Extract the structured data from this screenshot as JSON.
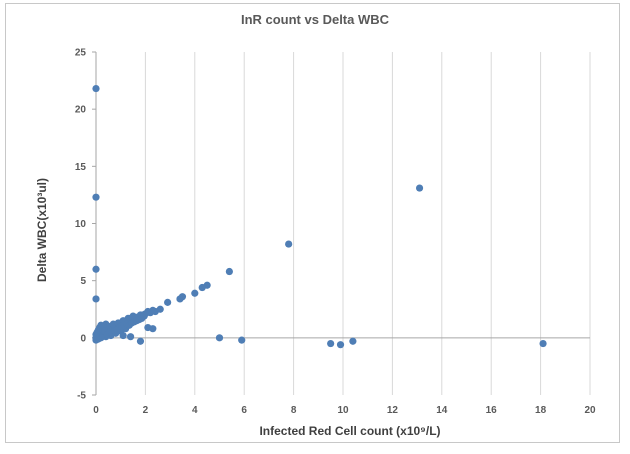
{
  "chart_data": {
    "type": "scatter",
    "title": "InR count vs Delta WBC",
    "xlabel": "Infected Red Cell count (x10⁹/L)",
    "ylabel": "Delta WBC(x10³ul)",
    "xlim": [
      0,
      20
    ],
    "ylim": [
      -5,
      25
    ],
    "xticks": [
      0,
      2,
      4,
      6,
      8,
      10,
      12,
      14,
      16,
      18,
      20
    ],
    "yticks": [
      -5,
      0,
      5,
      10,
      15,
      20,
      25
    ],
    "grid": "vertical",
    "color": "#4f7eb5",
    "points": [
      [
        0.0,
        21.8
      ],
      [
        0.0,
        12.3
      ],
      [
        0.0,
        6.0
      ],
      [
        0.0,
        3.4
      ],
      [
        13.1,
        13.1
      ],
      [
        7.8,
        8.2
      ],
      [
        5.4,
        5.8
      ],
      [
        4.5,
        4.6
      ],
      [
        4.3,
        4.4
      ],
      [
        4.0,
        3.9
      ],
      [
        3.5,
        3.6
      ],
      [
        3.4,
        3.4
      ],
      [
        2.9,
        3.1
      ],
      [
        2.6,
        2.5
      ],
      [
        2.4,
        2.3
      ],
      [
        2.2,
        2.2
      ],
      [
        2.0,
        2.1
      ],
      [
        1.8,
        2.0
      ],
      [
        1.6,
        1.8
      ],
      [
        1.5,
        1.6
      ],
      [
        1.4,
        1.5
      ],
      [
        1.3,
        1.4
      ],
      [
        1.2,
        1.3
      ],
      [
        1.1,
        1.2
      ],
      [
        1.0,
        1.1
      ],
      [
        0.9,
        1.0
      ],
      [
        0.8,
        0.9
      ],
      [
        0.7,
        0.8
      ],
      [
        0.6,
        0.7
      ],
      [
        0.5,
        0.6
      ],
      [
        0.4,
        0.5
      ],
      [
        0.3,
        0.4
      ],
      [
        0.2,
        0.3
      ],
      [
        0.1,
        0.2
      ],
      [
        0.2,
        1.1
      ],
      [
        0.4,
        1.2
      ],
      [
        0.6,
        1.0
      ],
      [
        0.3,
        0.8
      ],
      [
        0.5,
        0.9
      ],
      [
        0.7,
        1.2
      ],
      [
        0.9,
        1.3
      ],
      [
        1.1,
        1.5
      ],
      [
        1.3,
        1.7
      ],
      [
        1.5,
        1.9
      ],
      [
        1.7,
        1.8
      ],
      [
        1.9,
        2.0
      ],
      [
        2.1,
        2.3
      ],
      [
        2.3,
        2.4
      ],
      [
        1.0,
        0.6
      ],
      [
        1.2,
        0.8
      ],
      [
        0.8,
        0.4
      ],
      [
        0.6,
        0.2
      ],
      [
        0.4,
        0.1
      ],
      [
        0.2,
        0.0
      ],
      [
        0.1,
        -0.1
      ],
      [
        0.0,
        -0.2
      ],
      [
        0.0,
        0.0
      ],
      [
        0.0,
        0.3
      ],
      [
        0.05,
        0.5
      ],
      [
        0.1,
        0.7
      ],
      [
        0.15,
        0.9
      ],
      [
        0.3,
        1.0
      ],
      [
        0.35,
        0.6
      ],
      [
        0.45,
        0.3
      ],
      [
        0.55,
        0.5
      ],
      [
        0.65,
        0.4
      ],
      [
        0.75,
        0.6
      ],
      [
        0.85,
        0.7
      ],
      [
        0.95,
        0.9
      ],
      [
        1.05,
        1.0
      ],
      [
        1.15,
        1.1
      ],
      [
        1.25,
        1.2
      ],
      [
        1.35,
        1.1
      ],
      [
        1.45,
        1.3
      ],
      [
        1.55,
        1.4
      ],
      [
        1.65,
        1.5
      ],
      [
        1.75,
        1.6
      ],
      [
        1.85,
        1.7
      ],
      [
        1.95,
        1.9
      ],
      [
        2.1,
        0.9
      ],
      [
        2.3,
        0.8
      ],
      [
        1.8,
        -0.3
      ],
      [
        1.4,
        0.1
      ],
      [
        1.1,
        0.2
      ],
      [
        5.0,
        0.0
      ],
      [
        5.9,
        -0.2
      ],
      [
        9.5,
        -0.5
      ],
      [
        9.9,
        -0.6
      ],
      [
        10.4,
        -0.3
      ],
      [
        18.1,
        -0.5
      ]
    ]
  }
}
